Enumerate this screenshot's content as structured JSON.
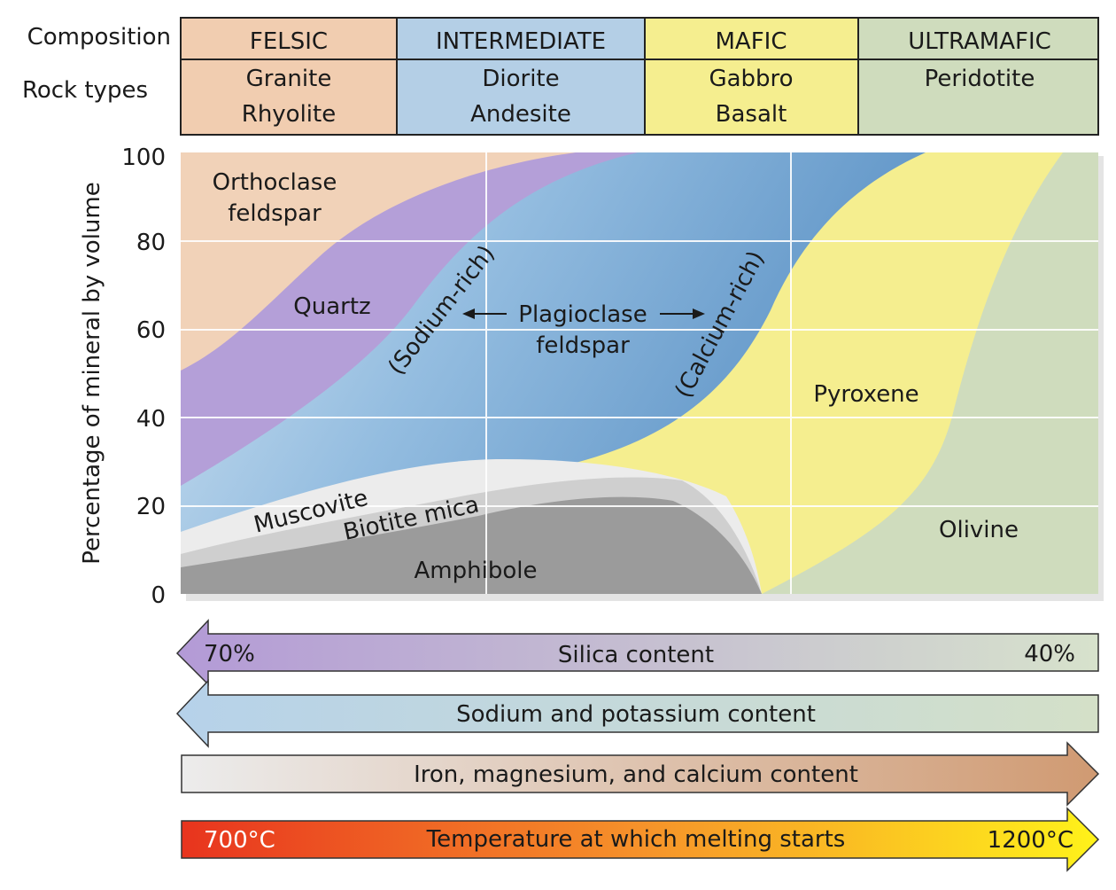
{
  "header": {
    "composition_label": "Composition",
    "rock_types_label": "Rock types",
    "columns": [
      {
        "name": "FELSIC",
        "rocks": [
          "Granite",
          "Rhyolite"
        ],
        "color": "#f1cdb0"
      },
      {
        "name": "INTERMEDIATE",
        "rocks": [
          "Diorite",
          "Andesite"
        ],
        "color": "#b4cfe6"
      },
      {
        "name": "MAFIC",
        "rocks": [
          "Gabbro",
          "Basalt"
        ],
        "color": "#f5ee8f"
      },
      {
        "name": "ULTRAMAFIC",
        "rocks": [
          "Peridotite",
          ""
        ],
        "color": "#cfdcbd"
      }
    ]
  },
  "chart": {
    "ylabel": "Percentage of mineral by volume",
    "yticks": [
      "100",
      "80",
      "60",
      "40",
      "20",
      "0"
    ],
    "regions": {
      "orthoclase": {
        "label": [
          "Orthoclase",
          "feldspar"
        ],
        "color": "#f1d2b8"
      },
      "quartz": {
        "label": "Quartz",
        "color": "#b49fd8"
      },
      "plagioclase": {
        "label": [
          "Plagioclase",
          "feldspar"
        ],
        "sodium": "(Sodium-rich)",
        "calcium": "(Calcium-rich)",
        "color": "#8bb6de"
      },
      "pyroxene": {
        "label": "Pyroxene",
        "color": "#f5ee8f"
      },
      "olivine": {
        "label": "Olivine",
        "color": "#cfdcbd"
      },
      "muscovite": {
        "label": "Muscovite",
        "color": "#e9e9e9"
      },
      "biotite": {
        "label": "Biotite mica",
        "color": "#cfcfcf"
      },
      "amphibole": {
        "label": "Amphibole",
        "color": "#9b9b9b"
      }
    }
  },
  "arrows": {
    "silica": {
      "label": "Silica content",
      "left": "70%",
      "right": "40%"
    },
    "sodium_potassium": {
      "label": "Sodium and potassium content"
    },
    "iron_magnesium_calcium": {
      "label": "Iron, magnesium, and calcium content"
    },
    "temperature": {
      "label": "Temperature at which melting starts",
      "left": "700°C",
      "right": "1200°C"
    }
  }
}
